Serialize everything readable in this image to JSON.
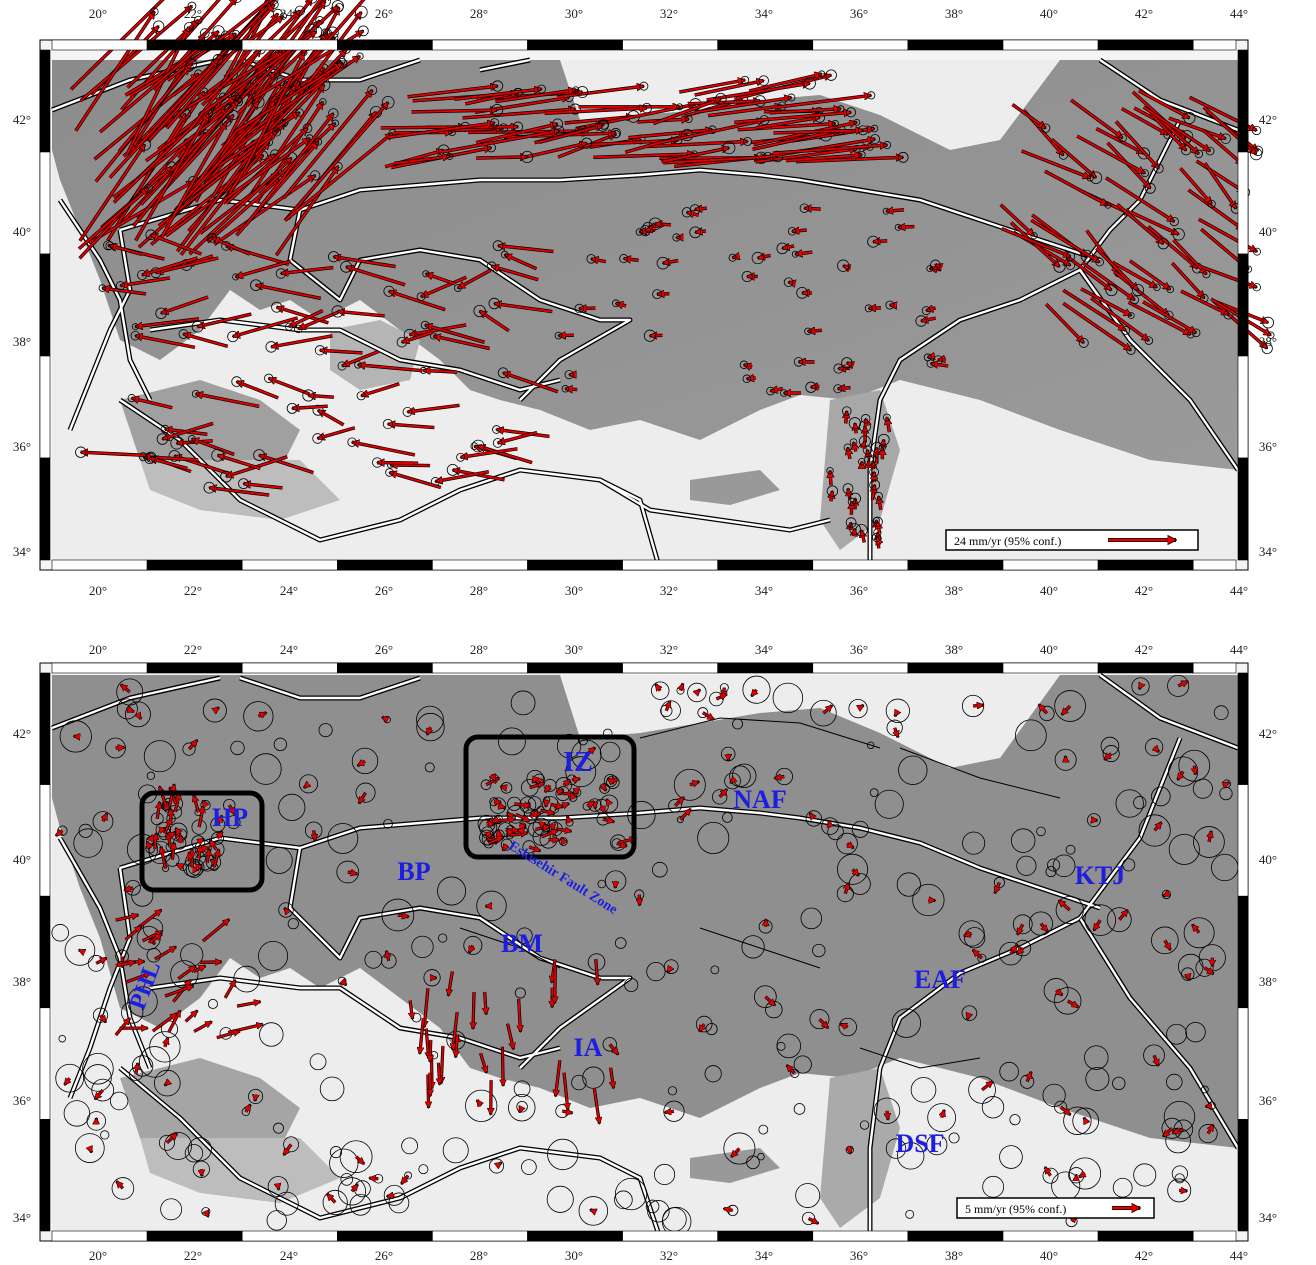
{
  "lon_ticks": [
    "20°",
    "22°",
    "24°",
    "26°",
    "28°",
    "30°",
    "32°",
    "34°",
    "36°",
    "38°",
    "40°",
    "42°",
    "44°"
  ],
  "lat_ticks": [
    "34°",
    "36°",
    "38°",
    "40°",
    "42°"
  ],
  "colors": {
    "vector": "#e00000",
    "plate_boundary": "#ffffff",
    "label": "#1d1ee0"
  },
  "top_map": {
    "legend": "24 mm/yr (95% conf.)"
  },
  "bottom_map": {
    "legend": "5 mm/yr (95% conf.)",
    "labels": {
      "hp": "HP",
      "iz": "IZ",
      "naf": "NAF",
      "bp": "BP",
      "ktj": "KTJ",
      "eskisehir": "Eskisehir Fault Zone",
      "bm": "BM",
      "phl": "PHL",
      "eaf": "EAF",
      "ia": "IA",
      "dsf": "DSF"
    }
  }
}
